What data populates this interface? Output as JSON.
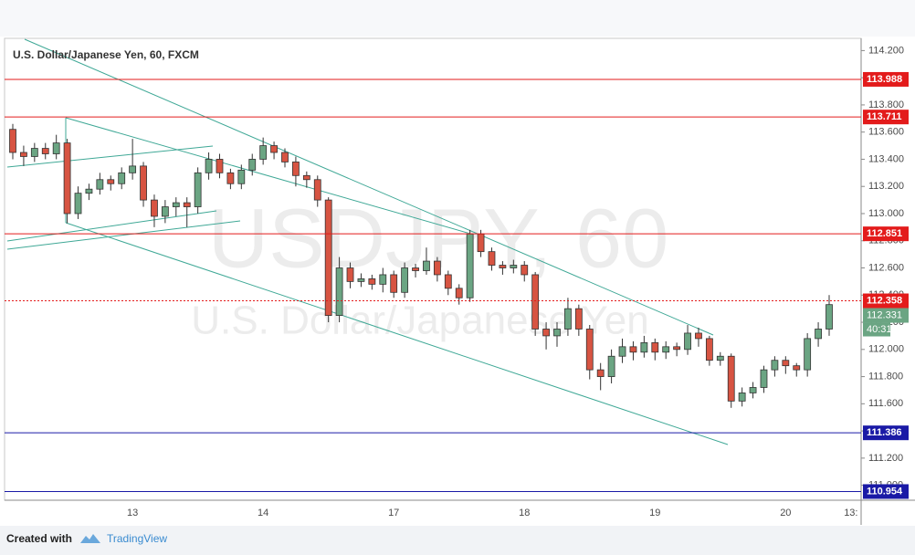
{
  "chart_data": {
    "type": "candlestick",
    "title": "U.S. Dollar/Japanese Yen, 60, FXCM",
    "watermark": "USDJPY, 60",
    "watermark_subtitle": "U.S. Dollar/Japanese Yen",
    "categories": [
      null,
      null,
      null,
      null,
      null,
      null,
      null,
      null,
      null,
      null,
      null,
      "13",
      null,
      null,
      null,
      null,
      null,
      null,
      null,
      null,
      null,
      null,
      null,
      "14",
      null,
      null,
      null,
      null,
      null,
      null,
      null,
      null,
      null,
      null,
      null,
      "17",
      null,
      null,
      null,
      null,
      null,
      null,
      null,
      null,
      null,
      null,
      null,
      "18",
      null,
      null,
      null,
      null,
      null,
      null,
      null,
      null,
      null,
      null,
      null,
      "19",
      null,
      null,
      null,
      null,
      null,
      null,
      null,
      null,
      null,
      null,
      null,
      "20",
      null,
      null,
      null,
      null,
      null,
      "13:"
    ],
    "open": [
      113.62,
      113.45,
      113.42,
      113.48,
      113.44,
      113.52,
      113.0,
      113.15,
      113.18,
      113.25,
      113.22,
      113.3,
      113.35,
      113.1,
      112.98,
      113.05,
      113.08,
      113.05,
      113.3,
      113.4,
      113.3,
      113.22,
      113.32,
      113.4,
      113.5,
      113.45,
      113.38,
      113.28,
      113.25,
      113.1,
      112.25,
      112.6,
      112.5,
      112.52,
      112.48,
      112.55,
      112.42,
      112.6,
      112.58,
      112.65,
      112.55,
      112.45,
      112.38,
      112.85,
      112.72,
      112.62,
      112.6,
      112.62,
      112.55,
      112.15,
      112.1,
      112.15,
      112.3,
      112.15,
      111.85,
      111.8,
      111.95,
      112.02,
      111.98,
      112.05,
      111.98,
      112.02,
      112.0,
      112.12,
      112.08,
      111.92,
      111.95,
      111.62,
      111.68,
      111.72,
      111.85,
      111.92,
      111.88,
      111.85,
      112.08,
      112.15,
      null,
      null
    ],
    "high": [
      113.66,
      113.5,
      113.52,
      113.52,
      113.58,
      113.55,
      113.2,
      113.22,
      113.3,
      113.28,
      113.34,
      113.55,
      113.38,
      113.14,
      113.1,
      113.12,
      113.12,
      113.34,
      113.45,
      113.44,
      113.33,
      113.36,
      113.44,
      113.56,
      113.53,
      113.48,
      113.42,
      113.31,
      113.28,
      113.12,
      112.68,
      112.64,
      112.56,
      112.55,
      112.6,
      112.58,
      112.64,
      112.63,
      112.75,
      112.68,
      112.58,
      112.48,
      112.88,
      112.88,
      112.75,
      112.65,
      112.66,
      112.65,
      112.57,
      112.2,
      112.2,
      112.38,
      112.33,
      112.18,
      111.9,
      112.0,
      112.08,
      112.06,
      112.1,
      112.08,
      112.06,
      112.05,
      112.18,
      112.16,
      112.1,
      111.98,
      111.97,
      111.72,
      111.76,
      111.88,
      111.95,
      111.95,
      111.9,
      112.12,
      112.2,
      112.4,
      null,
      null
    ],
    "low": [
      113.4,
      113.35,
      113.38,
      113.4,
      113.4,
      112.93,
      112.96,
      113.1,
      113.14,
      113.17,
      113.18,
      113.25,
      113.05,
      112.9,
      112.93,
      112.98,
      112.9,
      113.0,
      113.25,
      113.26,
      113.18,
      113.18,
      113.28,
      113.36,
      113.4,
      113.34,
      113.2,
      113.19,
      113.05,
      112.2,
      112.2,
      112.45,
      112.46,
      112.44,
      112.42,
      112.38,
      112.38,
      112.53,
      112.55,
      112.5,
      112.4,
      112.33,
      112.35,
      112.68,
      112.58,
      112.55,
      112.56,
      112.5,
      112.1,
      112.0,
      112.02,
      112.1,
      112.1,
      111.78,
      111.7,
      111.75,
      111.9,
      111.92,
      111.94,
      111.92,
      111.93,
      111.95,
      111.96,
      112.02,
      111.88,
      111.88,
      111.57,
      111.58,
      111.64,
      111.68,
      111.8,
      111.82,
      111.8,
      111.8,
      112.02,
      112.1,
      null,
      null
    ],
    "close": [
      113.45,
      113.42,
      113.48,
      113.44,
      113.52,
      113.0,
      113.15,
      113.18,
      113.25,
      113.22,
      113.3,
      113.35,
      113.1,
      112.98,
      113.05,
      113.08,
      113.05,
      113.3,
      113.4,
      113.3,
      113.22,
      113.32,
      113.4,
      113.5,
      113.45,
      113.38,
      113.28,
      113.25,
      113.1,
      112.25,
      112.6,
      112.5,
      112.52,
      112.48,
      112.55,
      112.42,
      112.6,
      112.58,
      112.65,
      112.55,
      112.45,
      112.38,
      112.85,
      112.72,
      112.62,
      112.6,
      112.62,
      112.55,
      112.15,
      112.1,
      112.15,
      112.3,
      112.15,
      111.85,
      111.8,
      111.95,
      112.02,
      111.98,
      112.05,
      111.98,
      112.02,
      112.0,
      112.12,
      112.08,
      111.92,
      111.95,
      111.62,
      111.68,
      111.72,
      111.85,
      111.92,
      111.88,
      111.85,
      112.08,
      112.15,
      112.33,
      null,
      null
    ],
    "up_color": "#6ba583",
    "down_color": "#d75442",
    "ylim": [
      110.89,
      114.29
    ],
    "yticks": [
      {
        "value": 111.0,
        "label": "111.000"
      },
      {
        "value": 111.2,
        "label": "111.200"
      },
      {
        "value": 111.4,
        "label": "111.400"
      },
      {
        "value": 111.6,
        "label": "111.600"
      },
      {
        "value": 111.8,
        "label": "111.800"
      },
      {
        "value": 112.0,
        "label": "112.000"
      },
      {
        "value": 112.2,
        "label": "112.200"
      },
      {
        "value": 112.4,
        "label": "112.400"
      },
      {
        "value": 112.6,
        "label": "112.600"
      },
      {
        "value": 112.8,
        "label": "112.800"
      },
      {
        "value": 113.0,
        "label": "113.000"
      },
      {
        "value": 113.2,
        "label": "113.200"
      },
      {
        "value": 113.4,
        "label": "113.400"
      },
      {
        "value": 113.6,
        "label": "113.600"
      },
      {
        "value": 113.8,
        "label": "113.800"
      },
      {
        "value": 114.0,
        "label": "114.000"
      },
      {
        "value": 114.2,
        "label": "114.200"
      }
    ],
    "grid": false,
    "levels": [
      {
        "value": 113.988,
        "color": "#e31b1b"
      },
      {
        "value": 113.711,
        "color": "#e31b1b"
      },
      {
        "value": 112.851,
        "color": "#e31b1b"
      },
      {
        "value": 111.386,
        "color": "#1a1aa6"
      },
      {
        "value": 110.954,
        "color": "#1a1aa6"
      }
    ],
    "price_line": {
      "value": 112.358,
      "color": "#e31b1b"
    },
    "last_close": {
      "value": 112.331,
      "color": "#6ba583"
    },
    "countdown": "40:31",
    "footer": {
      "created_with": "Created with",
      "brand": "TradingView"
    }
  }
}
